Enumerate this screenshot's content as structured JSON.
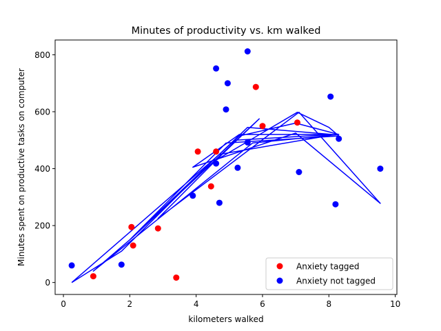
{
  "chart_data": {
    "type": "scatter",
    "title": "Minutes of productivity vs. km walked",
    "xlabel": "kilometers walked",
    "ylabel": "Minutes spent on productive tasks on computer",
    "xlim": [
      -0.25,
      10.05
    ],
    "ylim": [
      -42,
      852
    ],
    "xticks": [
      0,
      2,
      4,
      6,
      8,
      10
    ],
    "yticks": [
      0,
      200,
      400,
      600,
      800
    ],
    "grid": false,
    "legend_position": "lower right",
    "series": [
      {
        "name": "Anxiety tagged",
        "color": "#ff0000",
        "marker": "circle",
        "points": [
          {
            "x": 0.9,
            "y": 22
          },
          {
            "x": 2.05,
            "y": 195
          },
          {
            "x": 2.1,
            "y": 130
          },
          {
            "x": 2.85,
            "y": 190
          },
          {
            "x": 3.4,
            "y": 17
          },
          {
            "x": 4.05,
            "y": 460
          },
          {
            "x": 4.45,
            "y": 338
          },
          {
            "x": 4.6,
            "y": 460
          },
          {
            "x": 5.8,
            "y": 687
          },
          {
            "x": 6.0,
            "y": 550
          },
          {
            "x": 7.05,
            "y": 562
          }
        ]
      },
      {
        "name": "Anxiety not tagged",
        "color": "#0000ff",
        "marker": "circle",
        "points": [
          {
            "x": 0.25,
            "y": 60
          },
          {
            "x": 1.75,
            "y": 63
          },
          {
            "x": 3.9,
            "y": 305
          },
          {
            "x": 4.6,
            "y": 752
          },
          {
            "x": 4.6,
            "y": 418
          },
          {
            "x": 4.7,
            "y": 280
          },
          {
            "x": 4.9,
            "y": 608
          },
          {
            "x": 4.95,
            "y": 700
          },
          {
            "x": 5.25,
            "y": 403
          },
          {
            "x": 5.55,
            "y": 812
          },
          {
            "x": 5.55,
            "y": 492
          },
          {
            "x": 7.1,
            "y": 388
          },
          {
            "x": 8.05,
            "y": 653
          },
          {
            "x": 8.2,
            "y": 275
          },
          {
            "x": 8.3,
            "y": 505
          },
          {
            "x": 9.55,
            "y": 400
          }
        ]
      }
    ],
    "line": {
      "color": "#0000ff",
      "points": [
        {
          "x": 0.25,
          "y": 0
        },
        {
          "x": 1.75,
          "y": 110
        },
        {
          "x": 4.6,
          "y": 440
        },
        {
          "x": 5.3,
          "y": 515
        },
        {
          "x": 7.0,
          "y": 560
        },
        {
          "x": 8.3,
          "y": 520
        },
        {
          "x": 5.7,
          "y": 490
        },
        {
          "x": 0.9,
          "y": 40
        },
        {
          "x": 2.1,
          "y": 160
        },
        {
          "x": 5.9,
          "y": 575
        },
        {
          "x": 4.6,
          "y": 430
        },
        {
          "x": 7.05,
          "y": 598
        },
        {
          "x": 8.0,
          "y": 545
        },
        {
          "x": 8.3,
          "y": 515
        },
        {
          "x": 4.9,
          "y": 490
        },
        {
          "x": 2.0,
          "y": 150
        },
        {
          "x": 5.55,
          "y": 545
        },
        {
          "x": 8.1,
          "y": 520
        },
        {
          "x": 5.2,
          "y": 500
        },
        {
          "x": 2.85,
          "y": 225
        },
        {
          "x": 7.1,
          "y": 598
        },
        {
          "x": 9.55,
          "y": 278
        },
        {
          "x": 7.0,
          "y": 525
        },
        {
          "x": 3.9,
          "y": 405
        },
        {
          "x": 5.3,
          "y": 520
        },
        {
          "x": 8.2,
          "y": 520
        },
        {
          "x": 4.7,
          "y": 450
        },
        {
          "x": 0.25,
          "y": 0
        }
      ]
    }
  }
}
